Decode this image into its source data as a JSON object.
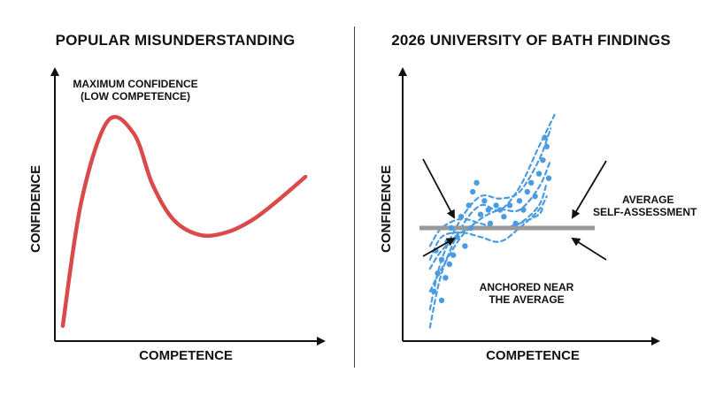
{
  "chart_data": [
    {
      "type": "line",
      "title": "POPULAR MISUNDERSTANDING",
      "xlabel": "COMPETENCE",
      "ylabel": "CONFIDENCE",
      "xlim": [
        0,
        1
      ],
      "ylim": [
        0,
        1
      ],
      "grid": false,
      "series_color": "#d94b4b",
      "x": [
        0.03,
        0.1,
        0.2,
        0.3,
        0.37,
        0.45,
        0.55,
        0.65,
        0.75,
        0.85,
        0.95
      ],
      "y": [
        0.06,
        0.55,
        0.87,
        0.82,
        0.62,
        0.48,
        0.42,
        0.43,
        0.48,
        0.56,
        0.65
      ],
      "annotations": [
        {
          "text_lines": [
            "MAXIMUM CONFIDENCE",
            "(LOW COMPETENCE)"
          ],
          "x": 0.3,
          "y": 0.87
        }
      ]
    },
    {
      "type": "scatter",
      "title": "2026 UNIVERSITY OF BATH FINDINGS",
      "xlabel": "COMPETENCE",
      "ylabel": "CONFIDENCE",
      "xlim": [
        0,
        1
      ],
      "ylim": [
        0,
        1
      ],
      "grid": false,
      "point_color": "#4a9be0",
      "reference_line": {
        "label_lines": [
          "AVERAGE",
          "SELF-ASSESSMENT"
        ],
        "y": 0.5,
        "color": "#999999"
      },
      "annotations": [
        {
          "text_lines": [
            "ANCHORED NEAR",
            "THE AVERAGE"
          ],
          "x": 0.5,
          "y": 0.18
        }
      ],
      "dashed_series": [
        {
          "x": [
            0.14,
            0.2,
            0.3,
            0.4,
            0.5,
            0.6,
            0.7,
            0.78
          ],
          "y": [
            0.06,
            0.3,
            0.5,
            0.6,
            0.58,
            0.68,
            0.86,
            1.0
          ]
        },
        {
          "x": [
            0.14,
            0.2,
            0.3,
            0.4,
            0.5,
            0.6,
            0.7,
            0.76
          ],
          "y": [
            0.14,
            0.36,
            0.54,
            0.64,
            0.63,
            0.66,
            0.8,
            0.94
          ]
        },
        {
          "x": [
            0.14,
            0.2,
            0.3,
            0.4,
            0.5,
            0.6,
            0.7,
            0.76
          ],
          "y": [
            0.22,
            0.32,
            0.46,
            0.54,
            0.58,
            0.58,
            0.68,
            0.8
          ]
        },
        {
          "x": [
            0.14,
            0.2,
            0.3,
            0.4,
            0.5,
            0.6,
            0.7,
            0.74
          ],
          "y": [
            0.32,
            0.4,
            0.48,
            0.5,
            0.5,
            0.52,
            0.6,
            0.7
          ]
        },
        {
          "x": [
            0.14,
            0.2,
            0.3,
            0.4,
            0.5,
            0.6,
            0.7,
            0.74
          ],
          "y": [
            0.36,
            0.46,
            0.48,
            0.46,
            0.44,
            0.5,
            0.58,
            0.64
          ]
        },
        {
          "x": [
            0.14,
            0.2,
            0.3,
            0.4,
            0.5,
            0.6,
            0.7,
            0.72
          ],
          "y": [
            0.42,
            0.5,
            0.54,
            0.52,
            0.5,
            0.52,
            0.56,
            0.6
          ]
        }
      ],
      "points": [
        {
          "x": 0.16,
          "y": 0.22
        },
        {
          "x": 0.18,
          "y": 0.3
        },
        {
          "x": 0.2,
          "y": 0.36
        },
        {
          "x": 0.17,
          "y": 0.4
        },
        {
          "x": 0.22,
          "y": 0.28
        },
        {
          "x": 0.23,
          "y": 0.44
        },
        {
          "x": 0.25,
          "y": 0.5
        },
        {
          "x": 0.26,
          "y": 0.38
        },
        {
          "x": 0.28,
          "y": 0.46
        },
        {
          "x": 0.3,
          "y": 0.55
        },
        {
          "x": 0.32,
          "y": 0.42
        },
        {
          "x": 0.34,
          "y": 0.6
        },
        {
          "x": 0.35,
          "y": 0.5
        },
        {
          "x": 0.38,
          "y": 0.7
        },
        {
          "x": 0.4,
          "y": 0.56
        },
        {
          "x": 0.42,
          "y": 0.62
        },
        {
          "x": 0.45,
          "y": 0.52
        },
        {
          "x": 0.48,
          "y": 0.6
        },
        {
          "x": 0.5,
          "y": 0.58
        },
        {
          "x": 0.52,
          "y": 0.55
        },
        {
          "x": 0.55,
          "y": 0.6
        },
        {
          "x": 0.58,
          "y": 0.52
        },
        {
          "x": 0.6,
          "y": 0.62
        },
        {
          "x": 0.62,
          "y": 0.58
        },
        {
          "x": 0.64,
          "y": 0.66
        },
        {
          "x": 0.66,
          "y": 0.7
        },
        {
          "x": 0.68,
          "y": 0.64
        },
        {
          "x": 0.7,
          "y": 0.74
        },
        {
          "x": 0.72,
          "y": 0.8
        },
        {
          "x": 0.74,
          "y": 0.86
        },
        {
          "x": 0.75,
          "y": 0.72
        },
        {
          "x": 0.73,
          "y": 0.9
        },
        {
          "x": 0.2,
          "y": 0.18
        },
        {
          "x": 0.24,
          "y": 0.34
        },
        {
          "x": 0.36,
          "y": 0.66
        },
        {
          "x": 0.44,
          "y": 0.58
        }
      ]
    }
  ]
}
